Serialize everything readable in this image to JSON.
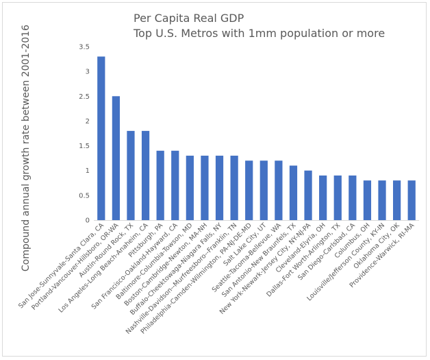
{
  "chart_data": {
    "type": "bar",
    "title": "Per Capita Real GDP",
    "subtitle": "Top U.S. Metros with 1mm population or more",
    "xlabel": "",
    "ylabel": "Compound annual growth rate between 2001-2016",
    "ylim": [
      0,
      3.5
    ],
    "yticks": [
      "0",
      "0.5",
      "1",
      "1.5",
      "2",
      "2.5",
      "3",
      "3.5"
    ],
    "grid": false,
    "bar_color": "#4472c4",
    "categories": [
      "San Jose-Sunnyvale-Santa Clara, CA",
      "Portland-Vancouver-Hillsboro, OR-WA",
      "Austin-Round Rock, TX",
      "Los Angeles-Long Beach-Anaheim, CA",
      "Pittsburgh, PA",
      "San Francisco-Oakland-Hayward, CA",
      "Baltimore-Columbia-Towson, MD",
      "Boston-Cambridge-Newton, MA-NH",
      "Buffalo-Cheektowaga-Niagara Falls, NY",
      "Nashville-Davidson--Murfreesboro--Franklin, TN",
      "Philadelphia-Camden-Wilmington, PA-NJ-DE-MD",
      "Salt Lake City, UT",
      "Seattle-Tacoma-Bellevue, WA",
      "San Antonio-New Braunfels, TX",
      "New York-Newark-Jersey City, NY-NJ-PA",
      "Cleveland-Elyria, OH",
      "Dallas-Fort Worth-Arlington, TX",
      "San Diego-Carlsbad, CA",
      "Columbus, OH",
      "Louisville/Jefferson County, KY-IN",
      "Oklahoma City, OK",
      "Providence-Warwick, RI-MA"
    ],
    "values": [
      3.3,
      2.5,
      1.8,
      1.8,
      1.4,
      1.4,
      1.3,
      1.3,
      1.3,
      1.3,
      1.2,
      1.2,
      1.2,
      1.1,
      1.0,
      0.9,
      0.9,
      0.9,
      0.8,
      0.8,
      0.8,
      0.8
    ]
  }
}
